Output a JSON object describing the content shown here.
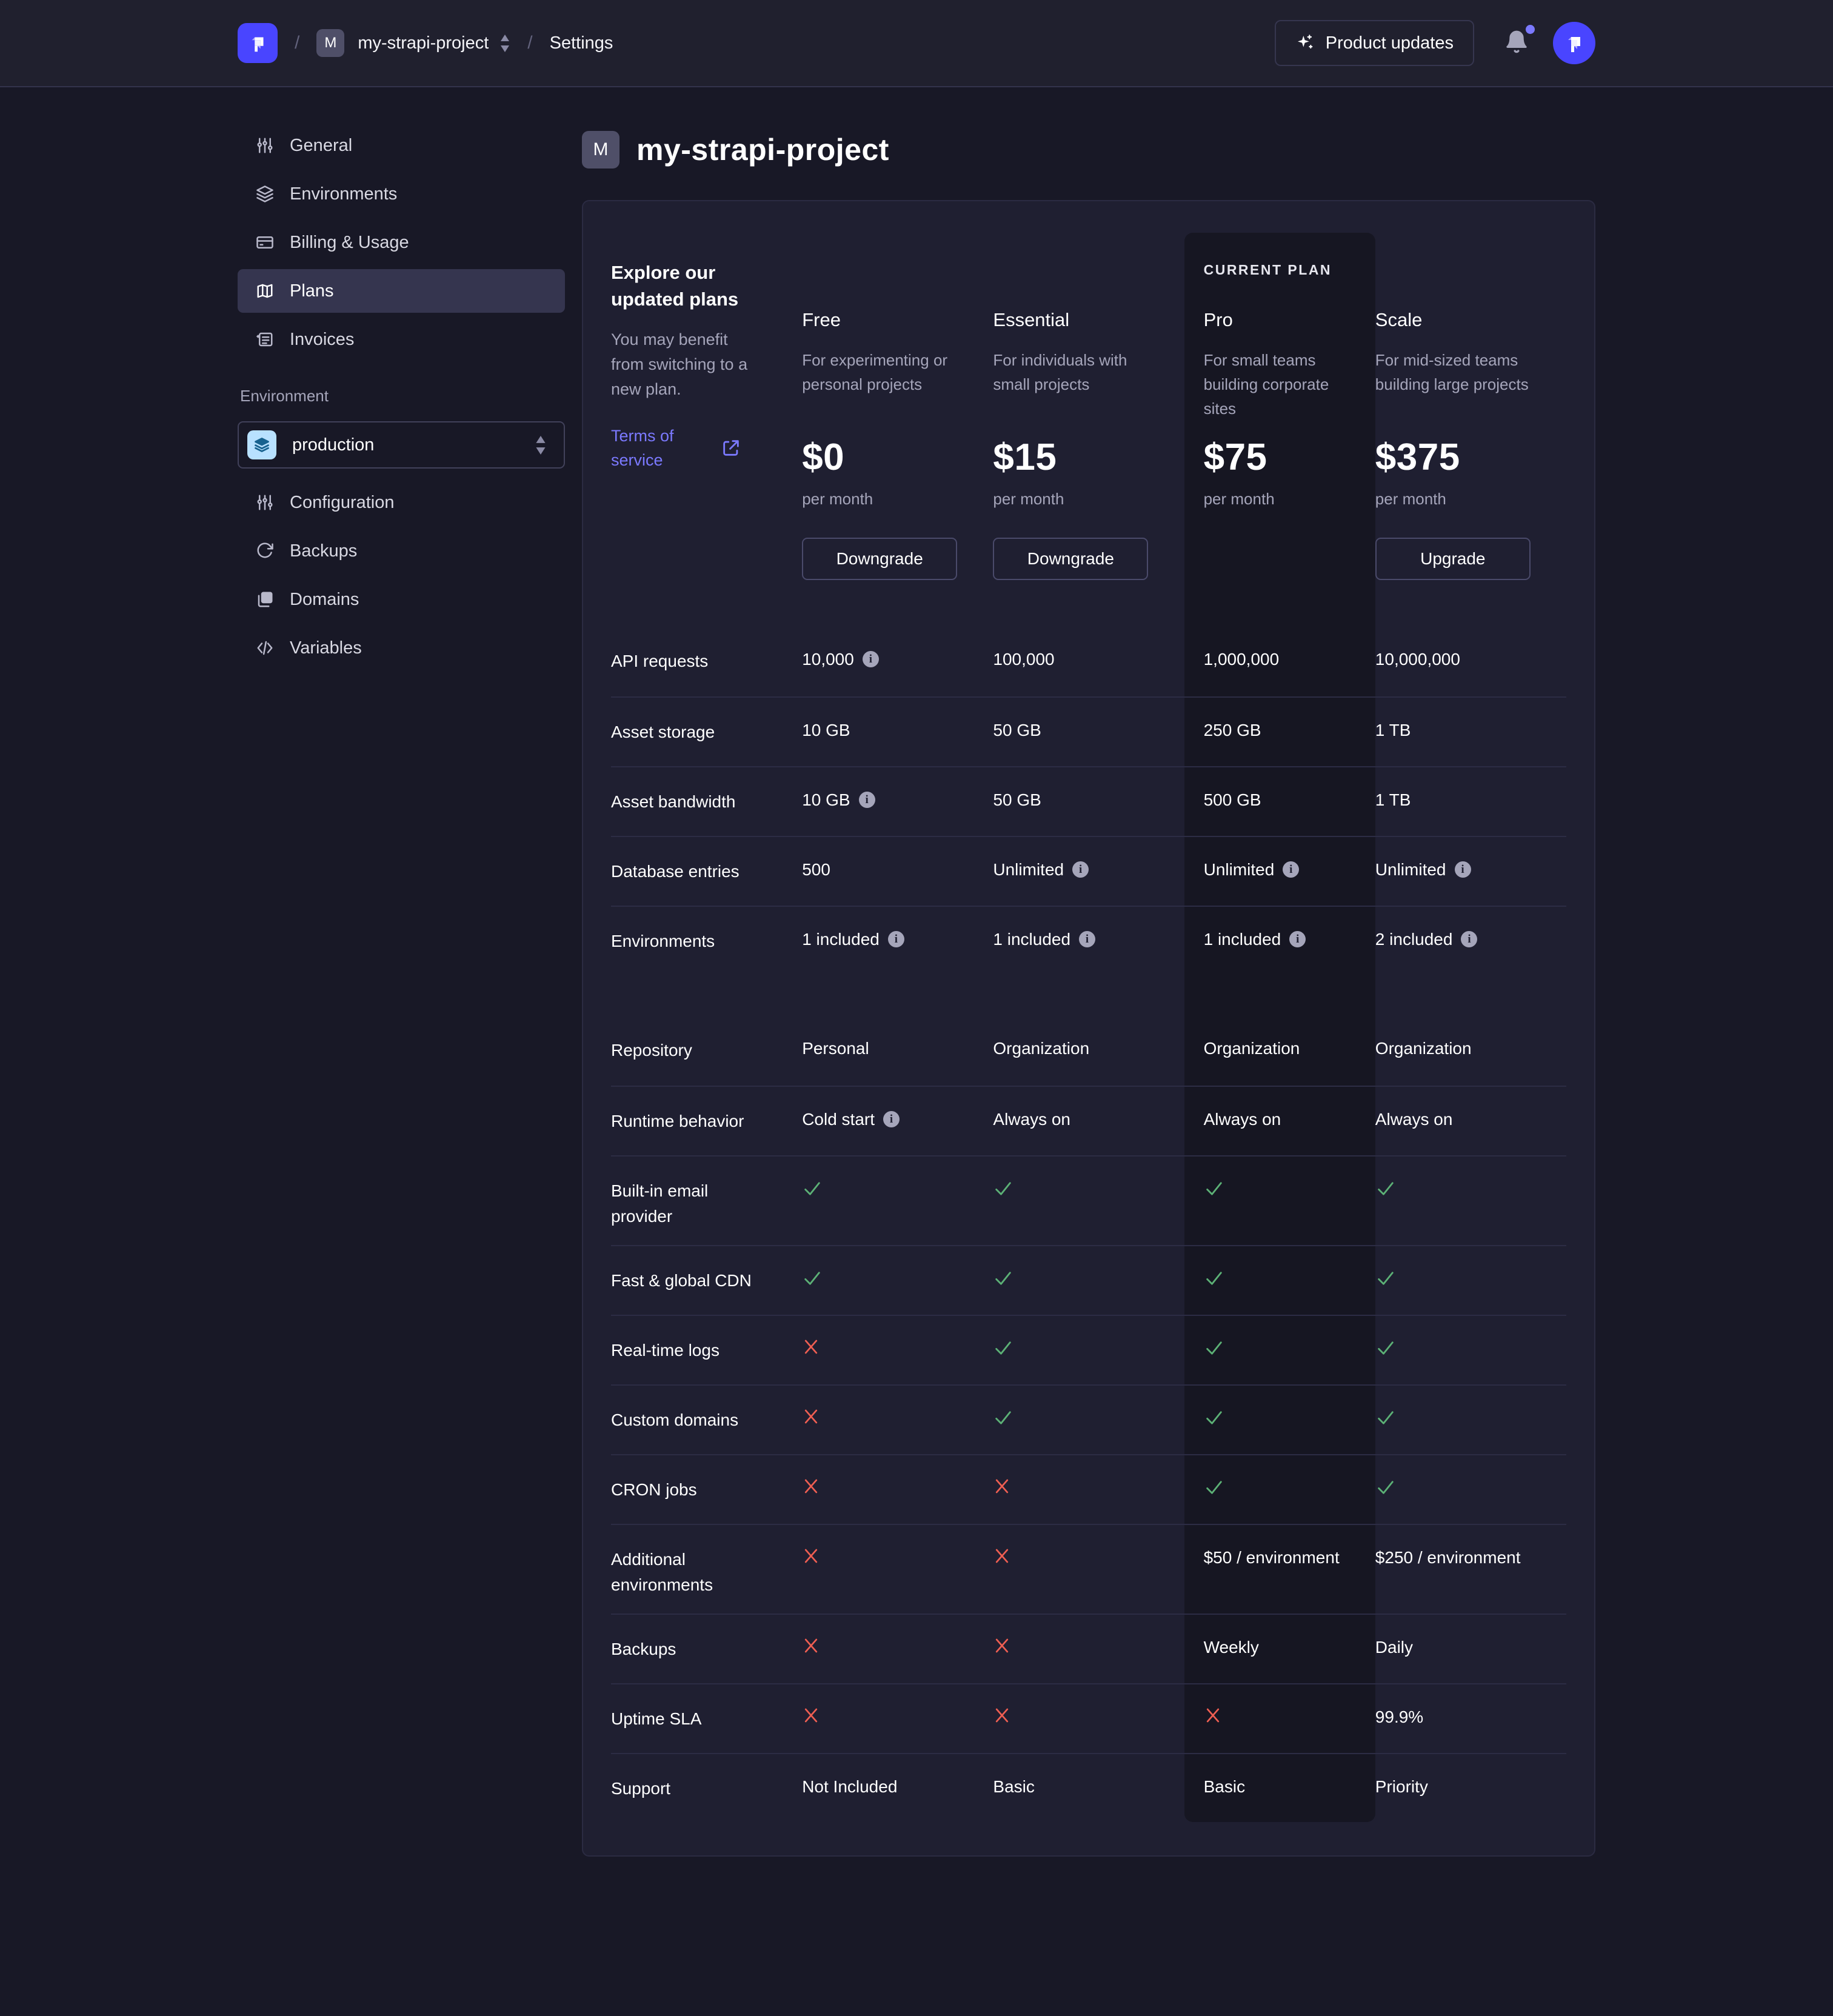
{
  "topbar": {
    "separator": "/",
    "breadcrumb": {
      "project_initial": "M",
      "project_name": "my-strapi-project",
      "section": "Settings"
    },
    "product_updates_label": "Product updates"
  },
  "sidebar": {
    "items": [
      {
        "label": "General",
        "icon": "sliders-icon",
        "selected": false
      },
      {
        "label": "Environments",
        "icon": "layers-icon",
        "selected": false
      },
      {
        "label": "Billing & Usage",
        "icon": "credit-card-icon",
        "selected": false
      },
      {
        "label": "Plans",
        "icon": "map-icon",
        "selected": true
      },
      {
        "label": "Invoices",
        "icon": "receipt-icon",
        "selected": false
      }
    ],
    "environment_label": "Environment",
    "environment_select": {
      "value": "production",
      "icon": "layers-icon"
    },
    "environment_items": [
      {
        "label": "Configuration",
        "icon": "sliders-icon"
      },
      {
        "label": "Backups",
        "icon": "refresh-icon"
      },
      {
        "label": "Domains",
        "icon": "copy-icon"
      },
      {
        "label": "Variables",
        "icon": "code-icon"
      }
    ]
  },
  "page": {
    "title_initial": "M",
    "title": "my-strapi-project"
  },
  "plans_card": {
    "intro": {
      "heading": "Explore our updated plans",
      "subheading": "You may benefit from switching to a new plan.",
      "terms_link": "Terms of service"
    },
    "current_plan_label": "CURRENT PLAN",
    "plans": [
      {
        "name": "Free",
        "description": "For experimenting or personal projects",
        "price": "$0",
        "period": "per month",
        "action": "Downgrade",
        "current": false
      },
      {
        "name": "Essential",
        "description": "For individuals with small projects",
        "price": "$15",
        "period": "per month",
        "action": "Downgrade",
        "current": false
      },
      {
        "name": "Pro",
        "description": "For small teams building corporate sites",
        "price": "$75",
        "period": "per month",
        "action": null,
        "current": true
      },
      {
        "name": "Scale",
        "description": "For mid-sized teams building large projects",
        "price": "$375",
        "period": "per month",
        "action": "Upgrade",
        "current": false
      }
    ],
    "rows": [
      {
        "label": "API requests",
        "size": "default",
        "values": [
          {
            "text": "10,000",
            "info": true
          },
          {
            "text": "100,000"
          },
          {
            "text": "1,000,000"
          },
          {
            "text": "10,000,000"
          }
        ]
      },
      {
        "label": "Asset storage",
        "size": "default",
        "values": [
          {
            "text": "10 GB"
          },
          {
            "text": "50 GB"
          },
          {
            "text": "250 GB"
          },
          {
            "text": "1 TB"
          }
        ]
      },
      {
        "label": "Asset bandwidth",
        "size": "default",
        "values": [
          {
            "text": "10 GB",
            "info": true
          },
          {
            "text": "50 GB"
          },
          {
            "text": "500 GB"
          },
          {
            "text": "1 TB"
          }
        ]
      },
      {
        "label": "Database entries",
        "size": "default",
        "values": [
          {
            "text": "500"
          },
          {
            "text": "Unlimited",
            "info": true
          },
          {
            "text": "Unlimited",
            "info": true
          },
          {
            "text": "Unlimited",
            "info": true
          }
        ]
      },
      {
        "label": "Environments",
        "size": "spacer",
        "values": [
          {
            "text": "1 included",
            "info": true
          },
          {
            "text": "1 included",
            "info": true
          },
          {
            "text": "1 included",
            "info": true
          },
          {
            "text": "2 included",
            "info": true
          }
        ]
      },
      {
        "label": "Repository",
        "size": "default",
        "no_border": true,
        "values": [
          {
            "text": "Personal"
          },
          {
            "text": "Organization"
          },
          {
            "text": "Organization"
          },
          {
            "text": "Organization"
          }
        ]
      },
      {
        "label": "Runtime behavior",
        "size": "default",
        "values": [
          {
            "text": "Cold start",
            "info": true
          },
          {
            "text": "Always on"
          },
          {
            "text": "Always on"
          },
          {
            "text": "Always on"
          }
        ]
      },
      {
        "label": "Built-in email provider",
        "size": "tall",
        "values": [
          {
            "icon": "check"
          },
          {
            "icon": "check"
          },
          {
            "icon": "check"
          },
          {
            "icon": "check"
          }
        ]
      },
      {
        "label": "Fast & global CDN",
        "size": "default",
        "values": [
          {
            "icon": "check"
          },
          {
            "icon": "check"
          },
          {
            "icon": "check"
          },
          {
            "icon": "check"
          }
        ]
      },
      {
        "label": "Real-time logs",
        "size": "default",
        "values": [
          {
            "icon": "cross"
          },
          {
            "icon": "check"
          },
          {
            "icon": "check"
          },
          {
            "icon": "check"
          }
        ]
      },
      {
        "label": "Custom domains",
        "size": "default",
        "values": [
          {
            "icon": "cross"
          },
          {
            "icon": "check"
          },
          {
            "icon": "check"
          },
          {
            "icon": "check"
          }
        ]
      },
      {
        "label": "CRON jobs",
        "size": "default",
        "values": [
          {
            "icon": "cross"
          },
          {
            "icon": "cross"
          },
          {
            "icon": "check"
          },
          {
            "icon": "check"
          }
        ]
      },
      {
        "label": "Additional environments",
        "size": "tall",
        "values": [
          {
            "icon": "cross"
          },
          {
            "icon": "cross"
          },
          {
            "text": "$50 / environment"
          },
          {
            "text": "$250 / environment"
          }
        ]
      },
      {
        "label": "Backups",
        "size": "default",
        "values": [
          {
            "icon": "cross"
          },
          {
            "icon": "cross"
          },
          {
            "text": "Weekly"
          },
          {
            "text": "Daily"
          }
        ]
      },
      {
        "label": "Uptime SLA",
        "size": "default",
        "values": [
          {
            "icon": "cross"
          },
          {
            "icon": "cross"
          },
          {
            "icon": "cross"
          },
          {
            "text": "99.9%"
          }
        ]
      },
      {
        "label": "Support",
        "size": "last",
        "values": [
          {
            "text": "Not Included"
          },
          {
            "text": "Basic"
          },
          {
            "text": "Basic"
          },
          {
            "text": "Priority"
          }
        ]
      }
    ]
  },
  "colors": {
    "brand": "#4945ff",
    "link": "#7b79ff",
    "success": "#5cb176",
    "danger": "#ee5e52",
    "page_bg": "#181826",
    "card_bg": "#1f1f31",
    "pro_column_bg": "#161622"
  }
}
